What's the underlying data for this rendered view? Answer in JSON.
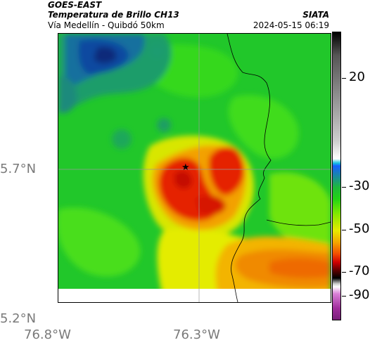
{
  "header": {
    "satellite": "GOES-EAST",
    "product": "Temperatura de Brillo CH13",
    "route": "Vía Medellín - Quibdó 50km",
    "org": "SIATA",
    "datetime": "2024-05-15 06:19"
  },
  "axes": {
    "lat_ticks": [
      "5.7°N",
      "5.2°N"
    ],
    "lon_ticks": [
      "76.8°W",
      "76.3°W"
    ]
  },
  "marker": {
    "icon": "star-icon",
    "glyph": "★"
  },
  "colorbar": {
    "labels": [
      "20",
      "-30",
      "-50",
      "-70",
      "-90"
    ],
    "colors": {
      "warm": "#000000",
      "cyan": "#16c0e0",
      "green": "#22d414",
      "yellow": "#e7ea00",
      "red": "#d00000",
      "magenta": "#a02c9c"
    }
  }
}
